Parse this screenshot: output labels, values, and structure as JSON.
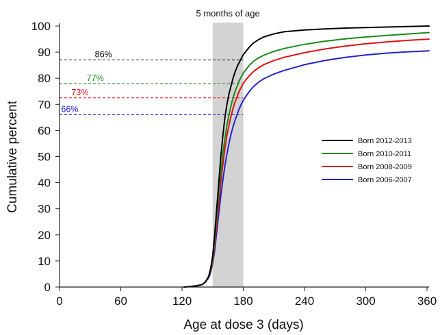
{
  "chart_data": {
    "type": "line",
    "title": "",
    "xlabel": "Age at dose 3 (days)",
    "ylabel": "Cumulative percent",
    "xlim": [
      0,
      362
    ],
    "ylim": [
      0,
      100
    ],
    "xticks": [
      0,
      60,
      120,
      180,
      240,
      300,
      360
    ],
    "yticks": [
      0,
      10,
      20,
      30,
      40,
      50,
      60,
      70,
      80,
      90,
      100
    ],
    "grid": false,
    "legend": "center-right",
    "shaded_band": {
      "from": 150,
      "to": 180,
      "label": "5 months of age",
      "color": "#d3d3d3"
    },
    "series": [
      {
        "name": "Born 2012-2013",
        "color": "#000000",
        "x": [
          122,
          128,
          135,
          140,
          143,
          146,
          148,
          150,
          152,
          154,
          156,
          158,
          160,
          162,
          164,
          166,
          168,
          170,
          172,
          174,
          176,
          178,
          180,
          183,
          186,
          190,
          195,
          200,
          210,
          220,
          240,
          260,
          280,
          300,
          320,
          340,
          362
        ],
        "y": [
          0,
          0.2,
          0.5,
          1,
          2,
          4,
          7,
          12,
          20,
          30,
          40,
          50,
          58,
          65,
          70,
          74,
          77,
          80,
          82.5,
          84.5,
          86,
          87.5,
          89,
          90.5,
          92,
          93.5,
          94.8,
          95.8,
          97,
          97.8,
          98.5,
          98.9,
          99.2,
          99.4,
          99.6,
          99.8,
          100
        ]
      },
      {
        "name": "Born 2010-2011",
        "color": "#1a8a1a",
        "x": [
          122,
          128,
          135,
          140,
          143,
          146,
          148,
          150,
          152,
          154,
          156,
          158,
          160,
          162,
          164,
          166,
          168,
          170,
          172,
          174,
          176,
          178,
          180,
          183,
          186,
          190,
          195,
          200,
          210,
          220,
          240,
          260,
          280,
          300,
          320,
          340,
          362
        ],
        "y": [
          0,
          0.2,
          0.5,
          1,
          2,
          4,
          6.5,
          11,
          18,
          27,
          36,
          44,
          51,
          57,
          62,
          66,
          69.5,
          72.5,
          75,
          77,
          79,
          80.5,
          82,
          83.5,
          85,
          86.5,
          87.8,
          88.8,
          90.3,
          91.4,
          93,
          94.2,
          95.1,
          95.8,
          96.4,
          96.9,
          97.5
        ]
      },
      {
        "name": "Born 2008-2009",
        "color": "#dd1111",
        "x": [
          122,
          128,
          135,
          140,
          143,
          146,
          148,
          150,
          152,
          154,
          156,
          158,
          160,
          162,
          164,
          166,
          168,
          170,
          172,
          174,
          176,
          178,
          180,
          183,
          186,
          190,
          195,
          200,
          210,
          220,
          240,
          260,
          280,
          300,
          320,
          340,
          362
        ],
        "y": [
          0,
          0.2,
          0.5,
          1,
          2,
          4,
          6,
          10,
          16,
          24,
          32,
          40,
          47,
          53,
          58,
          62,
          65.5,
          68.5,
          71,
          73,
          75,
          76.5,
          78,
          79.6,
          81,
          82.6,
          84,
          85.2,
          86.8,
          88,
          89.8,
          91.2,
          92.3,
          93.2,
          93.9,
          94.5,
          95
        ]
      },
      {
        "name": "Born 2006-2007",
        "color": "#2222cc",
        "x": [
          122,
          128,
          135,
          140,
          143,
          146,
          148,
          150,
          152,
          154,
          156,
          158,
          160,
          162,
          164,
          166,
          168,
          170,
          172,
          174,
          176,
          178,
          180,
          183,
          186,
          190,
          195,
          200,
          210,
          220,
          240,
          260,
          280,
          300,
          320,
          340,
          362
        ],
        "y": [
          0,
          0.2,
          0.5,
          1,
          2,
          3.5,
          5.5,
          9,
          14,
          21,
          28,
          35,
          41,
          46.5,
          51,
          55,
          58.5,
          61.5,
          64,
          66.2,
          68.2,
          70,
          71.5,
          73.3,
          75,
          76.8,
          78.5,
          79.8,
          81.6,
          83,
          85.2,
          86.8,
          88,
          88.9,
          89.6,
          90.1,
          90.5
        ]
      }
    ],
    "annotations": [
      {
        "label": "86%",
        "value": 87,
        "color": "#000000",
        "label_x": 43
      },
      {
        "label": "77%",
        "value": 78,
        "color": "#1a8a1a",
        "label_x": 35
      },
      {
        "label": "73%",
        "value": 72.5,
        "color": "#dd1111",
        "label_x": 20
      },
      {
        "label": "66%",
        "value": 66,
        "color": "#2222cc",
        "label_x": 10
      }
    ]
  }
}
